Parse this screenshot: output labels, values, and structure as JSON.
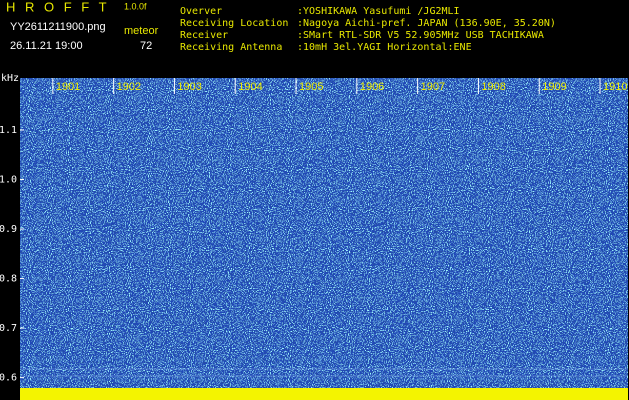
{
  "header": {
    "app": "H R O F F T",
    "version": "1.0.0f",
    "file": "YY2611211900.png",
    "count_label": "meteor",
    "datetime": "26.11.21 19:00",
    "count": "72",
    "info": [
      {
        "label": "Overver",
        "value": ":YOSHIKAWA Yasufumi /JG2MLI"
      },
      {
        "label": "Receiving Location",
        "value": ":Nagoya Aichi-pref. JAPAN (136.90E, 35.20N)"
      },
      {
        "label": "Receiver",
        "value": ":SMart RTL-SDR V5 52.905MHz USB TACHIKAWA"
      },
      {
        "label": "Receiving Antenna",
        "value": ":10mH 3el.YAGI Horizontal:ENE"
      }
    ]
  },
  "chart_data": {
    "type": "spectrogram",
    "y_label": "kHz",
    "xlim": [
      1900.46,
      1910.46
    ],
    "xticks": [
      1901,
      1902,
      1903,
      1904,
      1905,
      1906,
      1907,
      1908,
      1909,
      1910
    ],
    "ylim": [
      0.575,
      1.205
    ],
    "yticks": [
      0.6,
      0.7,
      0.8,
      0.9,
      {
        "value": 1,
        "label": "1.0"
      },
      1.1
    ]
  }
}
